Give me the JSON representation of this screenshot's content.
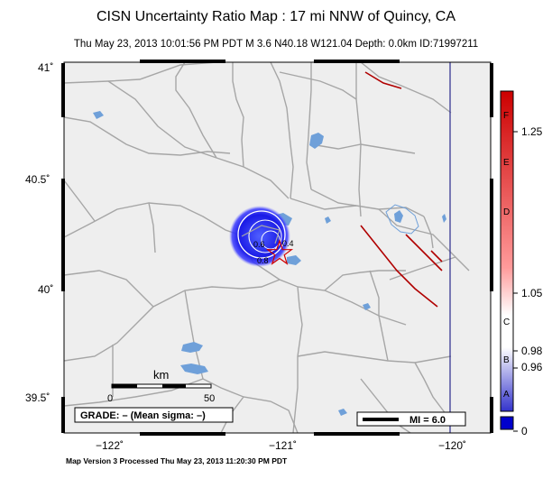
{
  "title": "CISN Uncertainty Ratio Map : 17 mi NNW of Quincy, CA",
  "subtitle": "Thu May 23, 2013 10:01:56 PM PDT   M 3.6   N40.18 W121.04   Depth: 0.0km   ID:71997211",
  "footer": "Map Version 3 Processed Thu May 23, 2013 11:20:30 PM PDT",
  "lat_ticks": [
    "41˚",
    "40.5˚",
    "40˚",
    "39.5˚"
  ],
  "lon_ticks": [
    "−122˚",
    "−121˚",
    "−120˚"
  ],
  "scalebar": {
    "unit": "km",
    "start": "0",
    "end": "50"
  },
  "grade_box": "GRADE: – (Mean sigma: –)",
  "mi_legend": "MI = 6.0",
  "contour_labels": [
    "0.4",
    "0.6",
    "0.8"
  ],
  "colorbar": {
    "grades": [
      "F",
      "E",
      "D",
      "C",
      "B",
      "A"
    ],
    "values": [
      "1.25",
      "1.05",
      "0.98",
      "0.96",
      "0"
    ],
    "colors": {
      "top": "#cc0000",
      "mid": "#ffffff",
      "bottom": "#0000cc"
    }
  },
  "colors": {
    "land": "#eeeeee",
    "roads": "#a6a6a6",
    "water": "#6fa0d9",
    "faults": "#b00000",
    "state_line": "#2b2b8c"
  }
}
